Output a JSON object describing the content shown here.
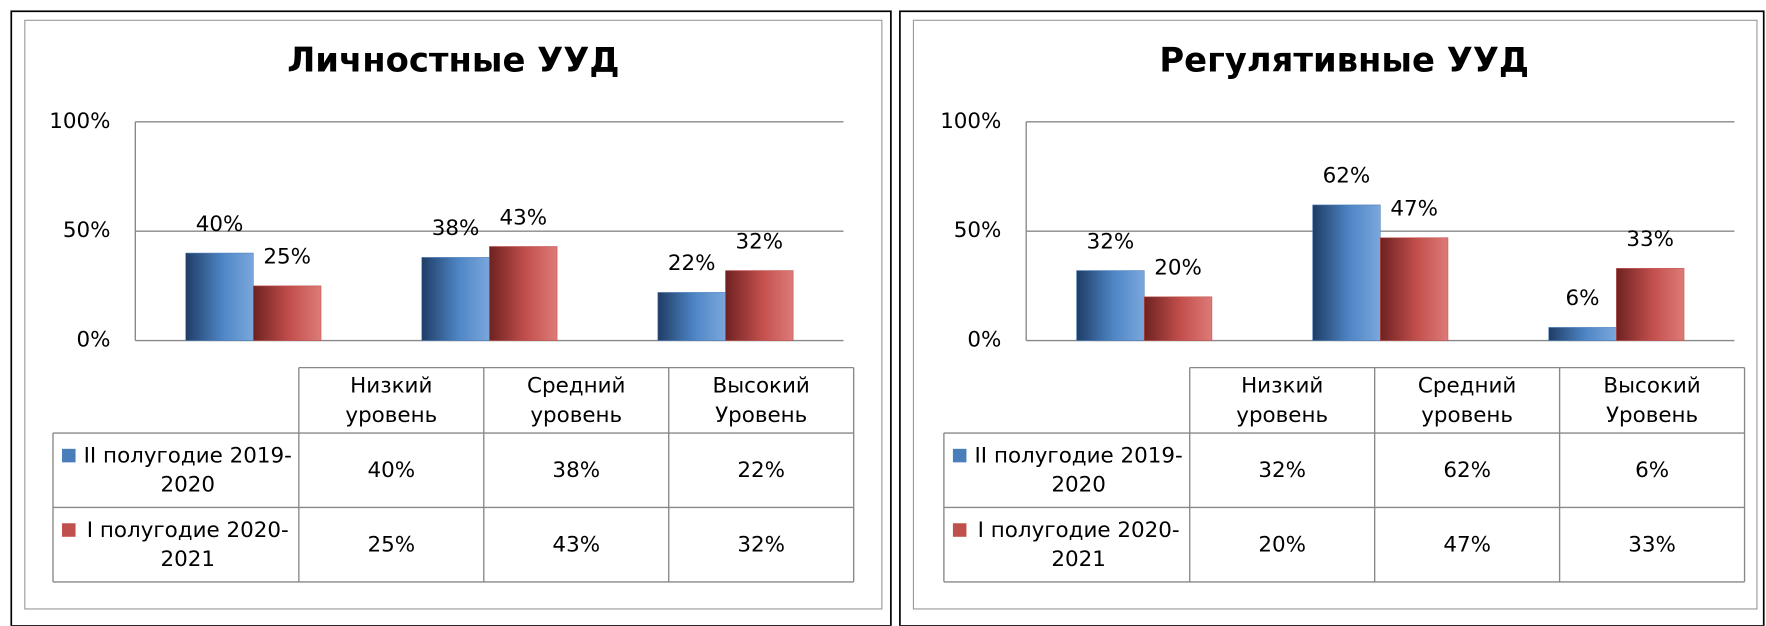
{
  "chart_data": [
    {
      "type": "bar",
      "title": "Личностные УУД",
      "categories": [
        "Низкий уровень",
        "Средний уровень",
        "Высокий Уровень"
      ],
      "series": [
        {
          "name": "II полугодие 2019-2020",
          "color": "#4a7ebb",
          "values": [
            40,
            38,
            22
          ],
          "value_labels": [
            "40%",
            "38%",
            "22%"
          ]
        },
        {
          "name": "I полугодие 2020-2021",
          "color": "#c0504d",
          "values": [
            25,
            43,
            32
          ],
          "value_labels": [
            "25%",
            "43%",
            "32%"
          ]
        }
      ],
      "ylim": [
        0,
        100
      ],
      "yticks": [
        {
          "value": 0,
          "label": "0%"
        },
        {
          "value": 50,
          "label": "50%"
        },
        {
          "value": 100,
          "label": "100%"
        }
      ],
      "grid": true
    },
    {
      "type": "bar",
      "title": "Регулятивные УУД",
      "categories": [
        "Низкий уровень",
        "Средний уровень",
        "Высокий Уровень"
      ],
      "series": [
        {
          "name": "II полугодие 2019-2020",
          "color": "#4a7ebb",
          "values": [
            32,
            62,
            6
          ],
          "value_labels": [
            "32%",
            "62%",
            "6%"
          ]
        },
        {
          "name": "I полугодие 2020-2021",
          "color": "#c0504d",
          "values": [
            20,
            47,
            33
          ],
          "value_labels": [
            "20%",
            "47%",
            "33%"
          ]
        }
      ],
      "ylim": [
        0,
        100
      ],
      "yticks": [
        {
          "value": 0,
          "label": "0%"
        },
        {
          "value": 50,
          "label": "50%"
        },
        {
          "value": 100,
          "label": "100%"
        }
      ],
      "grid": true
    }
  ]
}
